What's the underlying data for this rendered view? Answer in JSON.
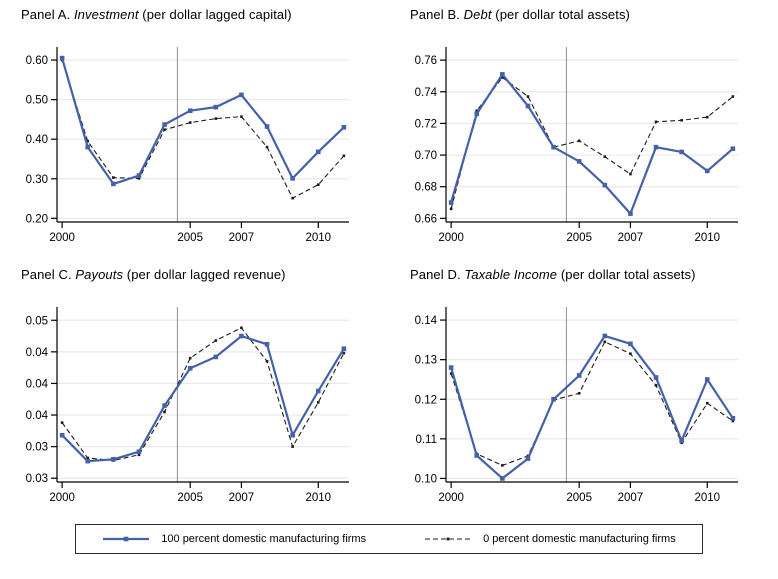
{
  "page": {
    "background": "#ffffff"
  },
  "colors": {
    "accent_blue": "#4561a8",
    "dashed_black": "#1c1c1c",
    "gridline": "#e9e9e9",
    "reference_line": "#8f8f8f",
    "axis": "#000000",
    "legend_border": "#2b2b2b"
  },
  "legend": {
    "items": [
      {
        "id": "solid",
        "label": "100 percent domestic manufacturing firms",
        "style": "solid-marker"
      },
      {
        "id": "dashed",
        "label": "0 percent domestic manufacturing firms",
        "style": "dashed"
      }
    ]
  },
  "chart_data": [
    {
      "panel": "A",
      "type": "line",
      "title_prefix": "Panel A.",
      "title_italic": "Investment",
      "title_suffix": "(per dollar lagged capital)",
      "x": [
        2000,
        2001,
        2002,
        2003,
        2004,
        2005,
        2006,
        2007,
        2008,
        2009,
        2010,
        2011
      ],
      "xlim": [
        1999.8,
        2011.2
      ],
      "xticks": [
        {
          "v": 2000,
          "label": "2000"
        },
        {
          "v": 2005,
          "label": "2005"
        },
        {
          "v": 2007,
          "label": "2007"
        },
        {
          "v": 2010,
          "label": "2010"
        }
      ],
      "ylim": [
        0.1907,
        0.633
      ],
      "yticks": [
        {
          "v": 0.2,
          "label": "0.20"
        },
        {
          "v": 0.3,
          "label": "0.30"
        },
        {
          "v": 0.4,
          "label": "0.40"
        },
        {
          "v": 0.5,
          "label": "0.50"
        },
        {
          "v": 0.6,
          "label": "0.60"
        }
      ],
      "vline_x": 2004.5,
      "series": [
        {
          "name": "100 percent domestic manufacturing firms",
          "style": "solid-marker",
          "values": [
            0.605,
            0.38,
            0.287,
            0.308,
            0.437,
            0.472,
            0.481,
            0.512,
            0.432,
            0.301,
            0.368,
            0.43
          ]
        },
        {
          "name": "0 percent domestic manufacturing firms",
          "style": "dashed",
          "values": [
            0.6,
            0.395,
            0.303,
            0.301,
            0.424,
            0.442,
            0.452,
            0.457,
            0.38,
            0.251,
            0.285,
            0.358
          ]
        }
      ]
    },
    {
      "panel": "B",
      "type": "line",
      "title_prefix": "Panel B.",
      "title_italic": "Debt",
      "title_suffix": "(per dollar total assets)",
      "x": [
        2000,
        2001,
        2002,
        2003,
        2004,
        2005,
        2006,
        2007,
        2008,
        2009,
        2010,
        2011
      ],
      "xlim": [
        1999.8,
        2011.2
      ],
      "xticks": [
        {
          "v": 2000,
          "label": "2000"
        },
        {
          "v": 2005,
          "label": "2005"
        },
        {
          "v": 2007,
          "label": "2007"
        },
        {
          "v": 2010,
          "label": "2010"
        }
      ],
      "ylim": [
        0.6577,
        0.7683
      ],
      "yticks": [
        {
          "v": 0.66,
          "label": "0.66"
        },
        {
          "v": 0.68,
          "label": "0.68"
        },
        {
          "v": 0.7,
          "label": "0.70"
        },
        {
          "v": 0.72,
          "label": "0.72"
        },
        {
          "v": 0.74,
          "label": "0.74"
        },
        {
          "v": 0.76,
          "label": "0.76"
        }
      ],
      "vline_x": 2004.5,
      "series": [
        {
          "name": "100 percent domestic manufacturing firms",
          "style": "solid-marker",
          "values": [
            0.67,
            0.726,
            0.751,
            0.731,
            0.705,
            0.696,
            0.681,
            0.663,
            0.705,
            0.702,
            0.69,
            0.704
          ]
        },
        {
          "name": "0 percent domestic manufacturing firms",
          "style": "dashed",
          "values": [
            0.666,
            0.728,
            0.749,
            0.737,
            0.705,
            0.709,
            0.699,
            0.688,
            0.721,
            0.722,
            0.724,
            0.737
          ]
        }
      ]
    },
    {
      "panel": "C",
      "type": "line",
      "title_prefix": "Panel C.",
      "title_italic": "Payouts",
      "title_suffix": "(per dollar lagged revenue)",
      "x": [
        2000,
        2001,
        2002,
        2003,
        2004,
        2005,
        2006,
        2007,
        2008,
        2009,
        2010,
        2011
      ],
      "xlim": [
        1999.8,
        2011.2
      ],
      "xticks": [
        {
          "v": 2000,
          "label": "2000"
        },
        {
          "v": 2005,
          "label": "2005"
        },
        {
          "v": 2007,
          "label": "2007"
        },
        {
          "v": 2010,
          "label": "2010"
        }
      ],
      "ylim": [
        0.0244,
        0.0521
      ],
      "yticks": [
        {
          "v": 0.025,
          "label": "0.03"
        },
        {
          "v": 0.03,
          "label": "0.03"
        },
        {
          "v": 0.035,
          "label": "0.04"
        },
        {
          "v": 0.04,
          "label": "0.04"
        },
        {
          "v": 0.045,
          "label": "0.04"
        },
        {
          "v": 0.05,
          "label": "0.05"
        }
      ],
      "vline_x": 2004.5,
      "series": [
        {
          "name": "100 percent domestic manufacturing firms",
          "style": "solid-marker",
          "values": [
            0.0318,
            0.0277,
            0.028,
            0.0292,
            0.0365,
            0.0424,
            0.0442,
            0.0475,
            0.0462,
            0.0318,
            0.0388,
            0.0455
          ]
        },
        {
          "name": "0 percent domestic manufacturing firms",
          "style": "dashed",
          "values": [
            0.0338,
            0.0282,
            0.0278,
            0.0287,
            0.0355,
            0.044,
            0.0468,
            0.0488,
            0.0435,
            0.03,
            0.037,
            0.0448
          ]
        }
      ]
    },
    {
      "panel": "D",
      "type": "line",
      "title_prefix": "Panel D.",
      "title_italic": "Taxable Income",
      "title_suffix": "(per dollar total assets)",
      "x": [
        2000,
        2001,
        2002,
        2003,
        2004,
        2005,
        2006,
        2007,
        2008,
        2009,
        2010,
        2011
      ],
      "xlim": [
        1999.8,
        2011.2
      ],
      "xticks": [
        {
          "v": 2000,
          "label": "2000"
        },
        {
          "v": 2005,
          "label": "2005"
        },
        {
          "v": 2007,
          "label": "2007"
        },
        {
          "v": 2010,
          "label": "2010"
        }
      ],
      "ylim": [
        0.0991,
        0.1433
      ],
      "yticks": [
        {
          "v": 0.1,
          "label": "0.10"
        },
        {
          "v": 0.11,
          "label": "0.11"
        },
        {
          "v": 0.12,
          "label": "0.12"
        },
        {
          "v": 0.13,
          "label": "0.13"
        },
        {
          "v": 0.14,
          "label": "0.14"
        }
      ],
      "vline_x": 2004.5,
      "series": [
        {
          "name": "100 percent domestic manufacturing firms",
          "style": "solid-marker",
          "values": [
            0.128,
            0.1058,
            0.1,
            0.105,
            0.12,
            0.126,
            0.136,
            0.134,
            0.1255,
            0.1095,
            0.125,
            0.1152
          ]
        },
        {
          "name": "0 percent domestic manufacturing firms",
          "style": "dashed",
          "values": [
            0.1265,
            0.1062,
            0.1033,
            0.1057,
            0.1198,
            0.1215,
            0.1345,
            0.1315,
            0.1235,
            0.109,
            0.119,
            0.1145
          ]
        }
      ]
    }
  ]
}
